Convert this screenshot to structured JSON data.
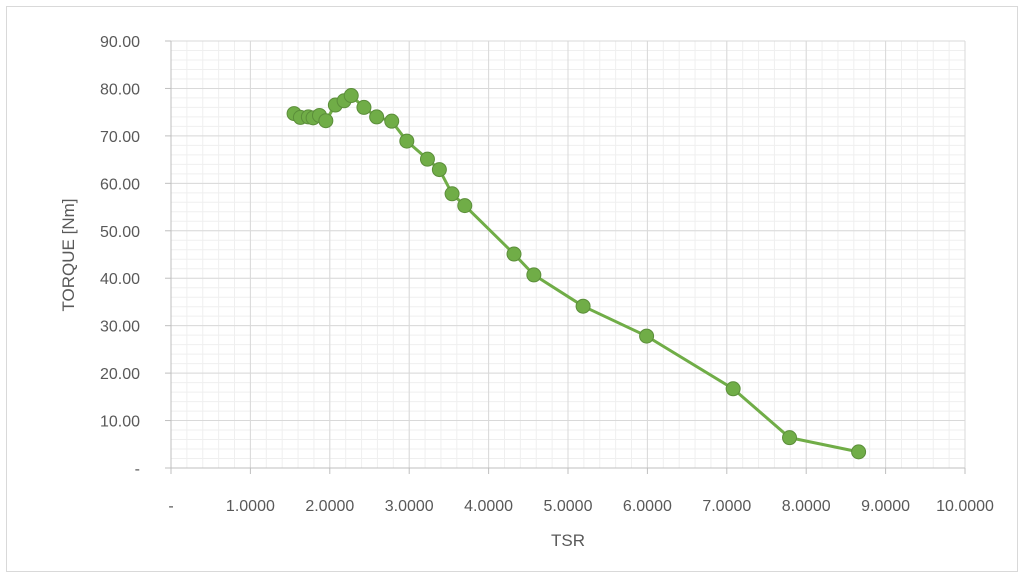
{
  "chart_data": {
    "type": "line",
    "title": "",
    "xlabel": "TSR",
    "ylabel": "TORQUE [Nm]",
    "xlim": [
      0,
      10
    ],
    "ylim": [
      0,
      90
    ],
    "x_tick_labels": [
      "-",
      "1.0000",
      "2.0000",
      "3.0000",
      "4.0000",
      "5.0000",
      "6.0000",
      "7.0000",
      "8.0000",
      "9.0000",
      "10.0000"
    ],
    "y_tick_labels": [
      "-",
      "10.00",
      "20.00",
      "30.00",
      "40.00",
      "50.00",
      "60.00",
      "70.00",
      "80.00",
      "90.00"
    ],
    "grid": true,
    "legend": "none",
    "series": [
      {
        "color": "#70AD47",
        "edge_color": "#5B8E3A",
        "marker": "circle",
        "points": [
          [
            1.55,
            74.7
          ],
          [
            1.63,
            73.9
          ],
          [
            1.73,
            74.0
          ],
          [
            1.79,
            73.8
          ],
          [
            1.87,
            74.3
          ],
          [
            1.95,
            73.2
          ],
          [
            2.07,
            76.5
          ],
          [
            2.18,
            77.4
          ],
          [
            2.27,
            78.5
          ],
          [
            2.43,
            76.0
          ],
          [
            2.59,
            74.0
          ],
          [
            2.78,
            73.1
          ],
          [
            2.97,
            68.9
          ],
          [
            3.23,
            65.1
          ],
          [
            3.38,
            62.9
          ],
          [
            3.54,
            57.8
          ],
          [
            3.7,
            55.3
          ],
          [
            4.32,
            45.1
          ],
          [
            4.57,
            40.7
          ],
          [
            5.19,
            34.1
          ],
          [
            5.99,
            27.8
          ],
          [
            7.08,
            16.7
          ],
          [
            7.79,
            6.4
          ],
          [
            8.66,
            3.4
          ]
        ]
      }
    ]
  }
}
